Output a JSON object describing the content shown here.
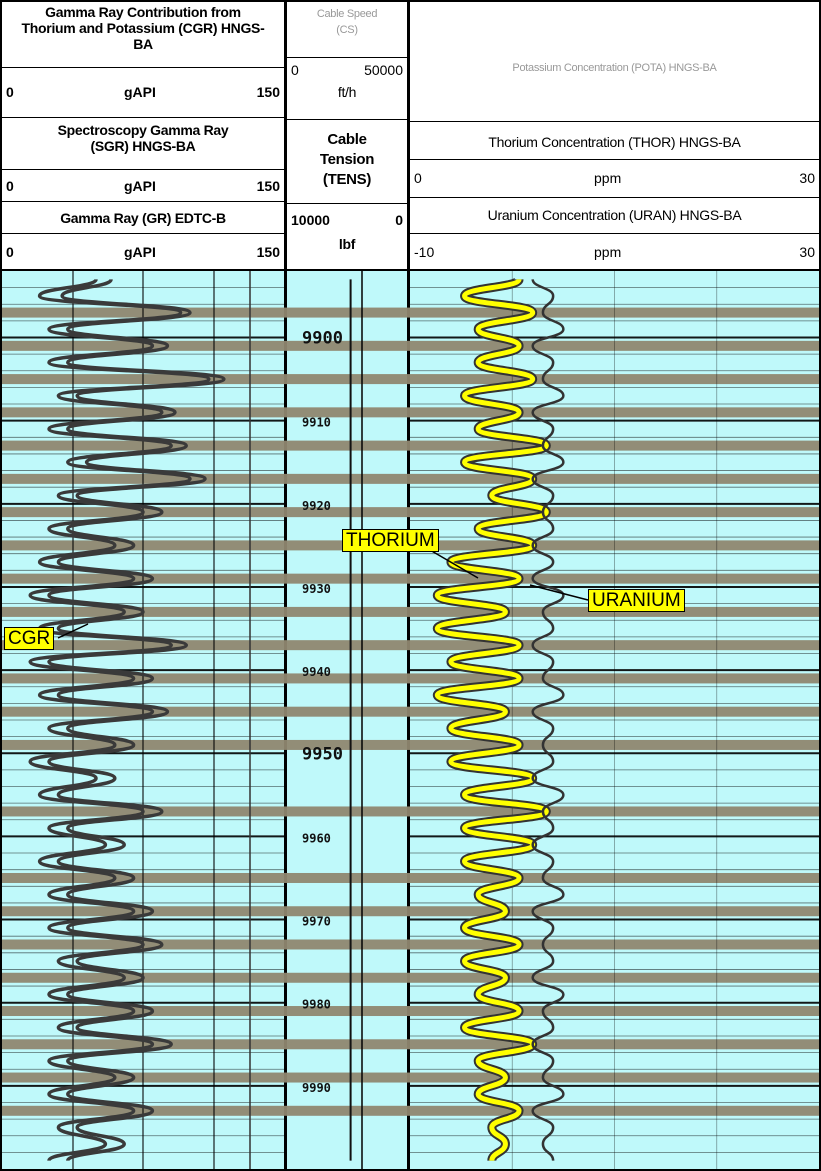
{
  "track1": {
    "cgr": {
      "title": "Gamma Ray Contribution from Thorium and Potassium (CGR) HNGS-BA",
      "min": "0",
      "unit": "gAPI",
      "max": "150"
    },
    "sgr": {
      "title": "Spectroscopy Gamma Ray (SGR) HNGS-BA",
      "min": "0",
      "unit": "gAPI",
      "max": "150"
    },
    "gr": {
      "title": "Gamma Ray (GR) EDTC-B",
      "min": "0",
      "unit": "gAPI",
      "max": "150"
    }
  },
  "track2": {
    "cs": {
      "title": "Cable Speed (CS)",
      "min": "0",
      "unit": "ft/h",
      "max": "50000"
    },
    "tens": {
      "title": "Cable Tension (TENS)",
      "min": "10000",
      "unit": "lbf",
      "max": "0"
    }
  },
  "track3": {
    "pota": {
      "title": "Potassium Concentration (POTA) HNGS-BA"
    },
    "thor": {
      "title": "Thorium Concentration (THOR) HNGS-BA",
      "min": "0",
      "unit": "ppm",
      "max": "30"
    },
    "uran": {
      "title": "Uranium Concentration (URAN) HNGS-BA",
      "min": "-10",
      "unit": "ppm",
      "max": "30"
    }
  },
  "callouts": {
    "cgr": "CGR",
    "thorium": "THORIUM",
    "uranium": "URANIUM"
  },
  "colors": {
    "background": "#bff9fa",
    "shade": "#8f8770",
    "curve": "#3a3a3a",
    "thorium": "#ffff00",
    "grid": "#000000"
  },
  "chart_data": {
    "type": "line",
    "depth_range": [
      9892,
      10000
    ],
    "depth_labels": [
      9900,
      9910,
      9920,
      9930,
      9940,
      9950,
      9960,
      9970,
      9980,
      9990
    ],
    "depth": [
      9893,
      9895,
      9897,
      9899,
      9901,
      9903,
      9905,
      9907,
      9909,
      9911,
      9913,
      9915,
      9917,
      9919,
      9921,
      9923,
      9925,
      9927,
      9929,
      9931,
      9933,
      9935,
      9937,
      9939,
      9941,
      9943,
      9945,
      9947,
      9949,
      9951,
      9953,
      9955,
      9957,
      9959,
      9961,
      9963,
      9965,
      9967,
      9969,
      9971,
      9973,
      9975,
      9977,
      9979,
      9981,
      9983,
      9985,
      9987,
      9989,
      9991,
      9993,
      9995,
      9997,
      9999
    ],
    "series": [
      {
        "name": "CGR",
        "unit": "gAPI",
        "scale": [
          0,
          150
        ],
        "values": [
          50,
          20,
          95,
          25,
          80,
          25,
          110,
          30,
          85,
          25,
          90,
          35,
          100,
          30,
          75,
          25,
          60,
          20,
          70,
          15,
          65,
          20,
          90,
          15,
          70,
          20,
          80,
          25,
          60,
          15,
          50,
          20,
          75,
          25,
          55,
          20,
          60,
          25,
          70,
          25,
          75,
          30,
          65,
          25,
          70,
          30,
          80,
          25,
          60,
          25,
          70,
          30,
          55,
          25
        ]
      },
      {
        "name": "SGR",
        "unit": "gAPI",
        "scale": [
          0,
          150
        ],
        "values": [
          58,
          32,
          100,
          35,
          88,
          35,
          118,
          40,
          92,
          35,
          98,
          45,
          108,
          40,
          85,
          35,
          70,
          30,
          80,
          25,
          75,
          30,
          98,
          25,
          80,
          30,
          88,
          35,
          70,
          25,
          60,
          30,
          85,
          35,
          65,
          30,
          70,
          35,
          80,
          35,
          85,
          40,
          75,
          35,
          80,
          40,
          90,
          35,
          70,
          35,
          80,
          40,
          65,
          35
        ]
      },
      {
        "name": "TENS",
        "unit": "lbf",
        "scale": [
          10000,
          0
        ],
        "values": [
          4700,
          4700,
          4700,
          4700,
          4700,
          4700,
          4700,
          4700,
          4700,
          4700,
          4700,
          4700,
          4700,
          4700,
          4700,
          4700,
          4700,
          4700,
          4700,
          4700,
          4700,
          4700,
          4700,
          4700,
          4700,
          4700,
          4700,
          4700,
          4700,
          4700,
          4700,
          4700,
          4700,
          4700,
          4700,
          4700,
          4700,
          4700,
          4700,
          4700,
          4700,
          4700,
          4700,
          4700,
          4700,
          4700,
          4700,
          4700,
          4700,
          4700,
          4700,
          4700,
          4700,
          4700
        ]
      },
      {
        "name": "THOR",
        "unit": "ppm",
        "scale": [
          0,
          30
        ],
        "values": [
          8,
          4,
          9,
          5,
          8,
          5,
          9,
          4,
          8,
          5,
          10,
          4,
          9,
          6,
          10,
          5,
          9,
          3,
          8,
          2,
          7,
          2,
          8,
          3,
          8,
          2,
          7,
          3,
          8,
          3,
          9,
          4,
          10,
          4,
          9,
          4,
          8,
          5,
          7,
          4,
          8,
          4,
          7,
          5,
          8,
          4,
          9,
          5,
          7,
          5,
          8,
          6,
          7,
          6
        ]
      },
      {
        "name": "URAN",
        "unit": "ppm",
        "scale": [
          -10,
          30
        ],
        "values": [
          2,
          4,
          3,
          5,
          2,
          4,
          3,
          5,
          2,
          4,
          3,
          5,
          2,
          4,
          3,
          4,
          2,
          4,
          2,
          5,
          3,
          4,
          2,
          4,
          3,
          5,
          2,
          4,
          3,
          4,
          2,
          5,
          3,
          4,
          2,
          4,
          3,
          5,
          2,
          4,
          3,
          4,
          2,
          5,
          3,
          4,
          2,
          4,
          3,
          5,
          2,
          4,
          3,
          4
        ]
      }
    ]
  }
}
